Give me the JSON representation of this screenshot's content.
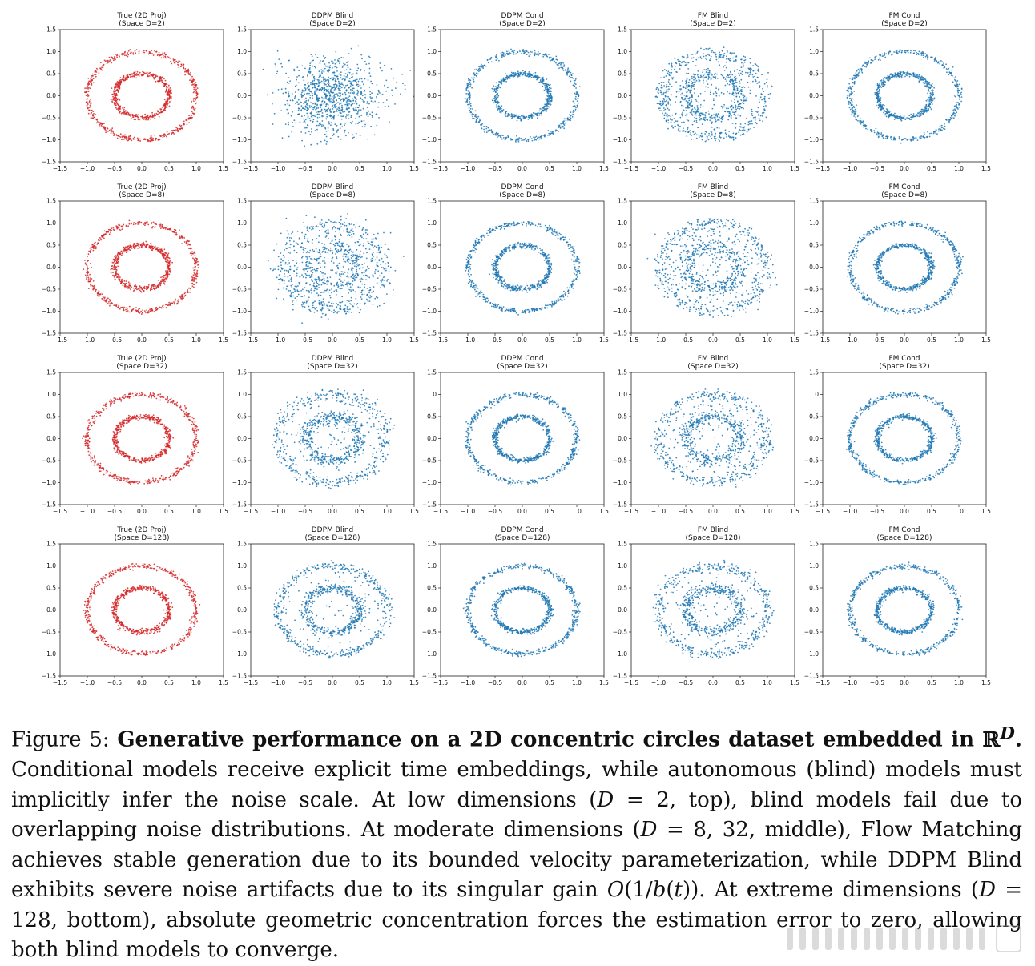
{
  "figure": {
    "axis_ticks": [
      "−1.5",
      "−1.0",
      "−0.5",
      "0.0",
      "0.5",
      "1.0",
      "1.5"
    ],
    "colors": {
      "true": "#d62728",
      "model": "#1f77b4",
      "frame": "#222222"
    },
    "rows": [
      {
        "space": "(Space D=2)"
      },
      {
        "space": "(Space D=8)"
      },
      {
        "space": "(Space D=32)"
      },
      {
        "space": "(Space D=128)"
      }
    ]
  },
  "chart_data": [
    {
      "type": "scatter",
      "title": "True (2D Proj)",
      "subtitle": "(Space D=2)",
      "row": 0,
      "col": 0,
      "color": "#d62728",
      "xlim": [
        -1.5,
        1.5
      ],
      "ylim": [
        -1.5,
        1.5
      ],
      "grid": false,
      "description_rings": [
        1.0,
        0.5
      ],
      "series": [
        {
          "kind": "rings",
          "radii": [
            1.0,
            0.5
          ],
          "noise": 0.03,
          "outliers": 0.0
        }
      ]
    },
    {
      "type": "scatter",
      "title": "DDPM Blind",
      "subtitle": "(Space D=2)",
      "row": 0,
      "col": 1,
      "color": "#1f77b4",
      "xlim": [
        -1.5,
        1.5
      ],
      "ylim": [
        -1.5,
        1.5
      ],
      "grid": false,
      "series": [
        {
          "kind": "gaussian",
          "sigma": 0.45
        }
      ]
    },
    {
      "type": "scatter",
      "title": "DDPM Cond",
      "subtitle": "(Space D=2)",
      "row": 0,
      "col": 2,
      "color": "#1f77b4",
      "xlim": [
        -1.5,
        1.5
      ],
      "ylim": [
        -1.5,
        1.5
      ],
      "grid": false,
      "series": [
        {
          "kind": "rings",
          "radii": [
            1.0,
            0.5
          ],
          "noise": 0.03,
          "outliers": 0.0
        }
      ]
    },
    {
      "type": "scatter",
      "title": "FM Blind",
      "subtitle": "(Space D=2)",
      "row": 0,
      "col": 3,
      "color": "#1f77b4",
      "xlim": [
        -1.5,
        1.5
      ],
      "ylim": [
        -1.5,
        1.5
      ],
      "grid": false,
      "series": [
        {
          "kind": "rings",
          "radii": [
            0.95,
            0.5
          ],
          "noise": 0.07,
          "outliers": 0.25
        }
      ]
    },
    {
      "type": "scatter",
      "title": "FM Cond",
      "subtitle": "(Space D=2)",
      "row": 0,
      "col": 4,
      "color": "#1f77b4",
      "xlim": [
        -1.5,
        1.5
      ],
      "ylim": [
        -1.5,
        1.5
      ],
      "grid": false,
      "series": [
        {
          "kind": "rings",
          "radii": [
            1.0,
            0.5
          ],
          "noise": 0.03,
          "outliers": 0.0
        }
      ]
    },
    {
      "type": "scatter",
      "title": "True (2D Proj)",
      "subtitle": "(Space D=8)",
      "row": 1,
      "col": 0,
      "color": "#d62728",
      "xlim": [
        -1.5,
        1.5
      ],
      "ylim": [
        -1.5,
        1.5
      ],
      "grid": false,
      "series": [
        {
          "kind": "rings",
          "radii": [
            1.0,
            0.5
          ],
          "noise": 0.03,
          "outliers": 0.0
        }
      ]
    },
    {
      "type": "scatter",
      "title": "DDPM Blind",
      "subtitle": "(Space D=8)",
      "row": 1,
      "col": 1,
      "color": "#1f77b4",
      "xlim": [
        -1.5,
        1.5
      ],
      "ylim": [
        -1.5,
        1.5
      ],
      "grid": false,
      "series": [
        {
          "kind": "rings",
          "radii": [
            0.95,
            0.45
          ],
          "noise": 0.12,
          "outliers": 0.35
        }
      ]
    },
    {
      "type": "scatter",
      "title": "DDPM Cond",
      "subtitle": "(Space D=8)",
      "row": 1,
      "col": 2,
      "color": "#1f77b4",
      "xlim": [
        -1.5,
        1.5
      ],
      "ylim": [
        -1.5,
        1.5
      ],
      "grid": false,
      "series": [
        {
          "kind": "rings",
          "radii": [
            1.0,
            0.5
          ],
          "noise": 0.03,
          "outliers": 0.0
        }
      ]
    },
    {
      "type": "scatter",
      "title": "FM Blind",
      "subtitle": "(Space D=8)",
      "row": 1,
      "col": 3,
      "color": "#1f77b4",
      "xlim": [
        -1.5,
        1.5
      ],
      "ylim": [
        -1.5,
        1.5
      ],
      "grid": false,
      "series": [
        {
          "kind": "rings",
          "radii": [
            1.0,
            0.5
          ],
          "noise": 0.08,
          "outliers": 0.3
        }
      ]
    },
    {
      "type": "scatter",
      "title": "FM Cond",
      "subtitle": "(Space D=8)",
      "row": 1,
      "col": 4,
      "color": "#1f77b4",
      "xlim": [
        -1.5,
        1.5
      ],
      "ylim": [
        -1.5,
        1.5
      ],
      "grid": false,
      "series": [
        {
          "kind": "rings",
          "radii": [
            1.0,
            0.5
          ],
          "noise": 0.03,
          "outliers": 0.0
        }
      ]
    },
    {
      "type": "scatter",
      "title": "True (2D Proj)",
      "subtitle": "(Space D=32)",
      "row": 2,
      "col": 0,
      "color": "#d62728",
      "xlim": [
        -1.5,
        1.5
      ],
      "ylim": [
        -1.5,
        1.5
      ],
      "grid": false,
      "series": [
        {
          "kind": "rings",
          "radii": [
            1.0,
            0.5
          ],
          "noise": 0.03,
          "outliers": 0.0
        }
      ]
    },
    {
      "type": "scatter",
      "title": "DDPM Blind",
      "subtitle": "(Space D=32)",
      "row": 2,
      "col": 1,
      "color": "#1f77b4",
      "xlim": [
        -1.5,
        1.5
      ],
      "ylim": [
        -1.5,
        1.5
      ],
      "grid": false,
      "series": [
        {
          "kind": "rings",
          "radii": [
            1.0,
            0.5
          ],
          "noise": 0.07,
          "outliers": 0.15
        }
      ]
    },
    {
      "type": "scatter",
      "title": "DDPM Cond",
      "subtitle": "(Space D=32)",
      "row": 2,
      "col": 2,
      "color": "#1f77b4",
      "xlim": [
        -1.5,
        1.5
      ],
      "ylim": [
        -1.5,
        1.5
      ],
      "grid": false,
      "series": [
        {
          "kind": "rings",
          "radii": [
            1.0,
            0.5
          ],
          "noise": 0.03,
          "outliers": 0.0
        }
      ]
    },
    {
      "type": "scatter",
      "title": "FM Blind",
      "subtitle": "(Space D=32)",
      "row": 2,
      "col": 3,
      "color": "#1f77b4",
      "xlim": [
        -1.5,
        1.5
      ],
      "ylim": [
        -1.5,
        1.5
      ],
      "grid": false,
      "series": [
        {
          "kind": "rings",
          "radii": [
            1.0,
            0.5
          ],
          "noise": 0.07,
          "outliers": 0.25
        }
      ]
    },
    {
      "type": "scatter",
      "title": "FM Cond",
      "subtitle": "(Space D=32)",
      "row": 2,
      "col": 4,
      "color": "#1f77b4",
      "xlim": [
        -1.5,
        1.5
      ],
      "ylim": [
        -1.5,
        1.5
      ],
      "grid": false,
      "series": [
        {
          "kind": "rings",
          "radii": [
            1.0,
            0.5
          ],
          "noise": 0.03,
          "outliers": 0.0
        }
      ]
    },
    {
      "type": "scatter",
      "title": "True (2D Proj)",
      "subtitle": "(Space D=128)",
      "row": 3,
      "col": 0,
      "color": "#d62728",
      "xlim": [
        -1.5,
        1.5
      ],
      "ylim": [
        -1.5,
        1.5
      ],
      "grid": false,
      "series": [
        {
          "kind": "rings",
          "radii": [
            1.0,
            0.5
          ],
          "noise": 0.03,
          "outliers": 0.0
        }
      ]
    },
    {
      "type": "scatter",
      "title": "DDPM Blind",
      "subtitle": "(Space D=128)",
      "row": 3,
      "col": 1,
      "color": "#1f77b4",
      "xlim": [
        -1.5,
        1.5
      ],
      "ylim": [
        -1.5,
        1.5
      ],
      "grid": false,
      "series": [
        {
          "kind": "rings",
          "radii": [
            1.0,
            0.5
          ],
          "noise": 0.05,
          "outliers": 0.1
        }
      ]
    },
    {
      "type": "scatter",
      "title": "DDPM Cond",
      "subtitle": "(Space D=128)",
      "row": 3,
      "col": 2,
      "color": "#1f77b4",
      "xlim": [
        -1.5,
        1.5
      ],
      "ylim": [
        -1.5,
        1.5
      ],
      "grid": false,
      "series": [
        {
          "kind": "rings",
          "radii": [
            1.0,
            0.5
          ],
          "noise": 0.03,
          "outliers": 0.0
        }
      ]
    },
    {
      "type": "scatter",
      "title": "FM Blind",
      "subtitle": "(Space D=128)",
      "row": 3,
      "col": 3,
      "color": "#1f77b4",
      "xlim": [
        -1.5,
        1.5
      ],
      "ylim": [
        -1.5,
        1.5
      ],
      "grid": false,
      "series": [
        {
          "kind": "rings",
          "radii": [
            1.0,
            0.5
          ],
          "noise": 0.06,
          "outliers": 0.12
        }
      ]
    },
    {
      "type": "scatter",
      "title": "FM Cond",
      "subtitle": "(Space D=128)",
      "row": 3,
      "col": 4,
      "color": "#1f77b4",
      "xlim": [
        -1.5,
        1.5
      ],
      "ylim": [
        -1.5,
        1.5
      ],
      "grid": false,
      "series": [
        {
          "kind": "rings",
          "radii": [
            1.0,
            0.5
          ],
          "noise": 0.03,
          "outliers": 0.0
        }
      ]
    }
  ],
  "caption": {
    "label": "Figure 5:",
    "bold_title": "Generative performance on a 2D concentric circles dataset embedded in",
    "bold_math": "ℝ",
    "bold_math_sup": "D",
    "bold_end": ".",
    "s1": "Conditional models receive explicit time embeddings, while autonomous (blind) models must implicitly infer the noise scale. At low dimensions (",
    "m1": "D",
    "s2": " = 2, top), blind models fail due to overlapping noise distributions. At moderate dimensions (",
    "m2": "D",
    "s3": " = 8, 32, middle), Flow Matching achieves stable generation due to its bounded velocity parameterization, while DDPM Blind exhibits severe noise artifacts due to its singular gain ",
    "m3": "O",
    "s4": "(1/",
    "m4": "b",
    "s5": "(",
    "m5": "t",
    "s6": ")). At extreme dimensions (",
    "m6": "D",
    "s7": " = 128, bottom), absolute geometric concentration forces the estimation error to zero, allowing both blind models to converge."
  }
}
